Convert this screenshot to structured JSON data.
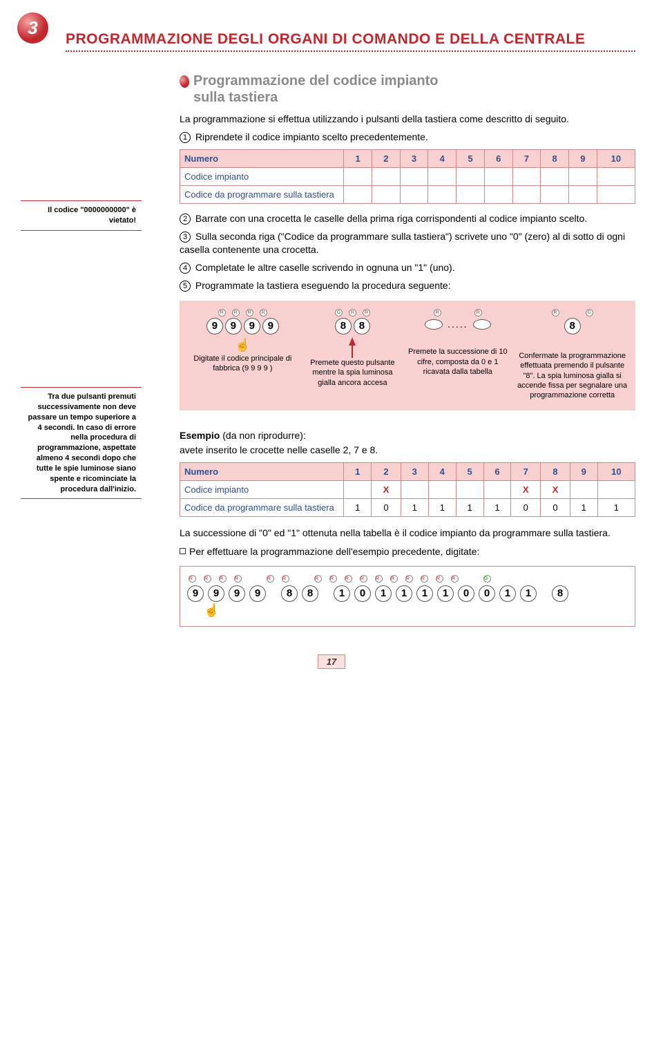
{
  "chapter": {
    "num": "3",
    "title": "PROGRAMMAZIONE DEGLI ORGANI DI COMANDO E DELLA CENTRALE"
  },
  "section": {
    "title_l1": "Programmazione del codice impianto",
    "title_l2": "sulla tastiera"
  },
  "intro": "La programmazione si effettua utilizzando i pulsanti della tastiera come descritto di seguito.",
  "step1": "Riprendete il codice impianto scelto precedentemente.",
  "sidebar1": "Il codice \"0000000000\" è vietato!",
  "table1": {
    "h_numero": "Numero",
    "cols": [
      "1",
      "2",
      "3",
      "4",
      "5",
      "6",
      "7",
      "8",
      "9",
      "10"
    ],
    "r1": "Codice impianto",
    "r2": "Codice da programmare sulla tastiera"
  },
  "step2": "Barrate con una crocetta le caselle della prima riga corrispondenti al codice impianto scelto.",
  "step3": "Sulla seconda riga (\"Codice da programmare sulla tastiera\") scrivete uno \"0\" (zero) al di sotto di ogni casella contenente una crocetta.",
  "step4": "Completate le altre caselle scrivendo in ognuna un \"1\" (uno).",
  "step5": "Programmate la tastiera eseguendo la procedura seguente:",
  "sidebar2": "Tra due pulsanti premuti successivamente non deve passare un tempo superiore a 4 secondi. In caso di errore nella procedura di programmazione, aspettate almeno 4 secondi dopo che tutte le spie luminose siano spente e ricominciate la procedura dall'inizio.",
  "proc": {
    "c1": {
      "btns": [
        "9",
        "9",
        "9",
        "9"
      ],
      "text": "Digitate il codice principale di fabbrica (9 9 9 9 )"
    },
    "c2": {
      "btns": [
        "8",
        "8"
      ],
      "text": "Premete questo pulsante mentre la spia luminosa gialla ancora accesa"
    },
    "c3": {
      "text": "Premete la successione di 10 cifre, composta da 0 e 1 ricavata dalla tabella"
    },
    "c4": {
      "btns": [
        "8"
      ],
      "text": "Confermate la programmazione effettuata premendo il pulsante \"8\". La spia luminosa gialla si accende fissa per segnalare una programmazione corretta"
    }
  },
  "example": {
    "title_b": "Esempio",
    "title_rest": "(da non riprodurre):",
    "line2": "avete inserito le crocette nelle caselle 2, 7 e 8.",
    "table": {
      "h_numero": "Numero",
      "cols": [
        "1",
        "2",
        "3",
        "4",
        "5",
        "6",
        "7",
        "8",
        "9",
        "10"
      ],
      "r1_label": "Codice impianto",
      "r1_vals": [
        "",
        "X",
        "",
        "",
        "",
        "",
        "X",
        "X",
        "",
        ""
      ],
      "r2_label": "Codice da programmare sulla tastiera",
      "r2_vals": [
        "1",
        "0",
        "1",
        "1",
        "1",
        "1",
        "0",
        "0",
        "1",
        "1"
      ]
    },
    "after1": "La successione di \"0\" ed \"1\" ottenuta nella tabella è il codice impianto da programmare sulla tastiera.",
    "after2": "Per effettuare la programmazione dell'esempio precedente, digitate:",
    "seq": [
      "9",
      "9",
      "9",
      "9",
      "gap",
      "8",
      "8",
      "gap",
      "1",
      "0",
      "1",
      "1",
      "1",
      "1",
      "0",
      "0",
      "1",
      "1",
      "gap",
      "8"
    ]
  },
  "pagenum": "17"
}
